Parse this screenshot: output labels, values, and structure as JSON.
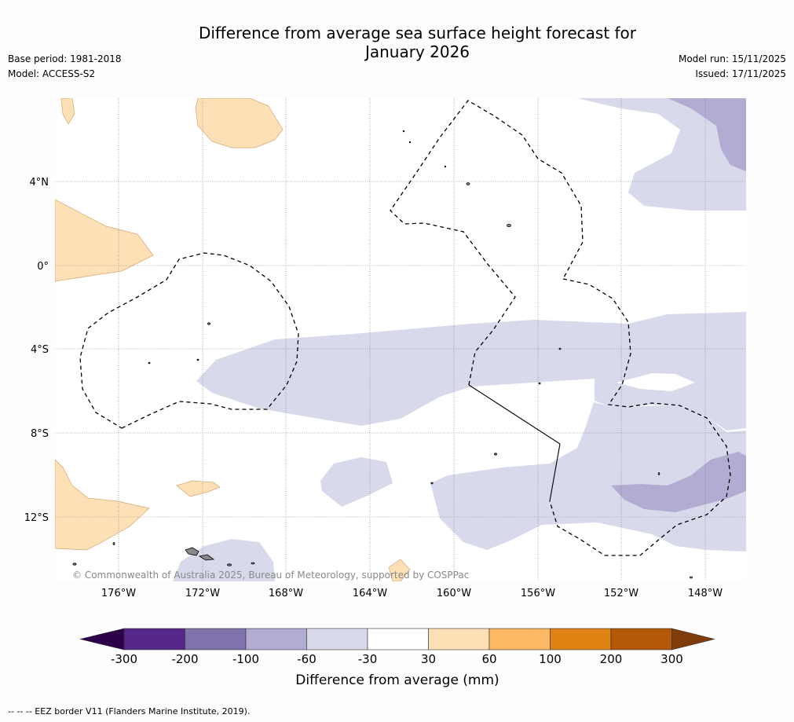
{
  "title": {
    "line1": "Difference from average sea surface height forecast for",
    "line2": "January 2026"
  },
  "meta_left": {
    "base_period": "Base period: 1981-2018",
    "model": "Model: ACCESS-S2"
  },
  "meta_right": {
    "model_run": "Model run: 15/11/2025",
    "issued": "Issued: 17/11/2025"
  },
  "map": {
    "lat_labels": [
      "4°N",
      "0°",
      "4°S",
      "8°S",
      "12°S"
    ],
    "lon_labels": [
      "176°W",
      "172°W",
      "168°W",
      "164°W",
      "160°W",
      "156°W",
      "152°W",
      "148°W"
    ],
    "copyright": "© Commonwealth of Australia 2025, Bureau of Meteorology, supported by COSPPac"
  },
  "colorbar": {
    "title": "Difference from average (mm)",
    "tick_labels": [
      "-300",
      "-200",
      "-100",
      "-60",
      "-30",
      "30",
      "60",
      "100",
      "200",
      "300"
    ],
    "colors": [
      "#2d004b",
      "#542788",
      "#8073ac",
      "#b2abd2",
      "#d8daeb",
      "#ffffff",
      "#fee0b6",
      "#fdb863",
      "#e08214",
      "#b35806",
      "#7f3b08"
    ]
  },
  "footer": "-- -- -- EEZ border V11 (Flanders Marine Institute, 2019)."
}
